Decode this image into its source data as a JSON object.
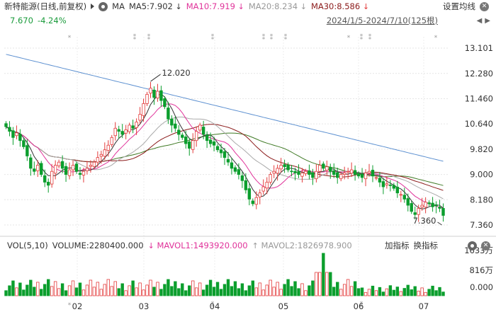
{
  "header": {
    "stock_name": "新特能源",
    "mode": "(日线,前复权)",
    "ma_label": "MA",
    "ma5": "MA5:7.902",
    "ma10": "MA10:7.919",
    "ma20": "MA20:8.234",
    "ma30": "MA30:8.586",
    "ma_colors": {
      "ma5": "#333333",
      "ma10": "#e0339a",
      "ma20": "#aaaaaa",
      "ma30": "#8b1a1a"
    },
    "arrows": {
      "ma5": "↓",
      "ma10": "↓",
      "ma20": "↓",
      "ma30": "↓"
    },
    "settings_label": "设置均线",
    "last_price": "7.670",
    "change_pct": "-4.24%",
    "date_range": "2024/1/5-2024/7/10(125根)"
  },
  "price_axis": {
    "ticks": [
      "13.101",
      "12.280",
      "11.460",
      "10.640",
      "9.820",
      "9.000",
      "8.180",
      "7.360"
    ],
    "min": 7.36,
    "max": 13.101
  },
  "annotations": {
    "high": "12.020",
    "low": "7.360"
  },
  "x_axis": {
    "labels": [
      "02",
      "03",
      "04",
      "05",
      "06",
      "07"
    ]
  },
  "volume_header": {
    "vol_label": "VOL(5,10)",
    "volume": "VOLUME:2280400.000",
    "mavol1": "MAVOL1:1493920.000",
    "mavol1_arrow": "↓",
    "mavol2": "MAVOL2:1826978.900",
    "mavol2_arrow": "↑",
    "add_indicator": "加指标",
    "switch_indicator": "换指标"
  },
  "volume_axis": {
    "ticks": [
      "1633万",
      "816万",
      "0.000"
    ]
  },
  "colors": {
    "up": "#e33b3b",
    "down": "#0b9e2d",
    "green_text": "#1a9b3b",
    "grid": "#e6e6e6",
    "blue_line": "#5b8fd0",
    "dark_green_line": "#3f7a25"
  },
  "chart_data": {
    "type": "candlestick",
    "ylim": [
      7.36,
      13.101
    ],
    "xlabel_ticks": [
      "02",
      "03",
      "04",
      "05",
      "06",
      "07"
    ],
    "high": 12.02,
    "low": 7.36,
    "last": 7.67,
    "series_close": [
      10.55,
      10.4,
      10.2,
      10.35,
      10.1,
      9.9,
      9.6,
      9.2,
      9.1,
      9.3,
      9.0,
      8.75,
      8.65,
      9.1,
      9.3,
      9.4,
      9.2,
      9.0,
      9.15,
      9.3,
      9.1,
      9.0,
      9.1,
      9.2,
      9.3,
      9.4,
      9.55,
      9.65,
      9.8,
      9.95,
      10.2,
      10.5,
      10.4,
      10.3,
      10.45,
      10.6,
      10.5,
      10.7,
      10.95,
      11.3,
      11.6,
      11.8,
      11.5,
      11.7,
      11.4,
      11.2,
      10.8,
      10.6,
      10.5,
      10.3,
      10.2,
      10.0,
      9.85,
      10.1,
      10.4,
      10.6,
      10.3,
      10.1,
      10.0,
      9.95,
      9.8,
      9.7,
      9.55,
      9.4,
      9.2,
      9.1,
      9.0,
      8.8,
      8.5,
      8.2,
      8.05,
      8.25,
      8.4,
      8.6,
      8.75,
      9.0,
      9.1,
      9.2,
      9.3,
      9.25,
      9.15,
      9.1,
      9.05,
      9.0,
      9.05,
      9.1,
      9.0,
      8.9,
      9.1,
      9.3,
      9.2,
      9.25,
      9.1,
      9.0,
      8.9,
      9.0,
      9.05,
      9.1,
      9.15,
      9.0,
      8.95,
      8.9,
      9.05,
      9.1,
      8.95,
      8.9,
      8.75,
      8.6,
      8.7,
      8.65,
      8.55,
      8.4,
      8.35,
      8.2,
      8.0,
      7.8,
      7.7,
      7.9,
      8.0,
      8.1,
      8.05,
      7.95,
      7.98,
      7.9,
      7.67
    ]
  }
}
